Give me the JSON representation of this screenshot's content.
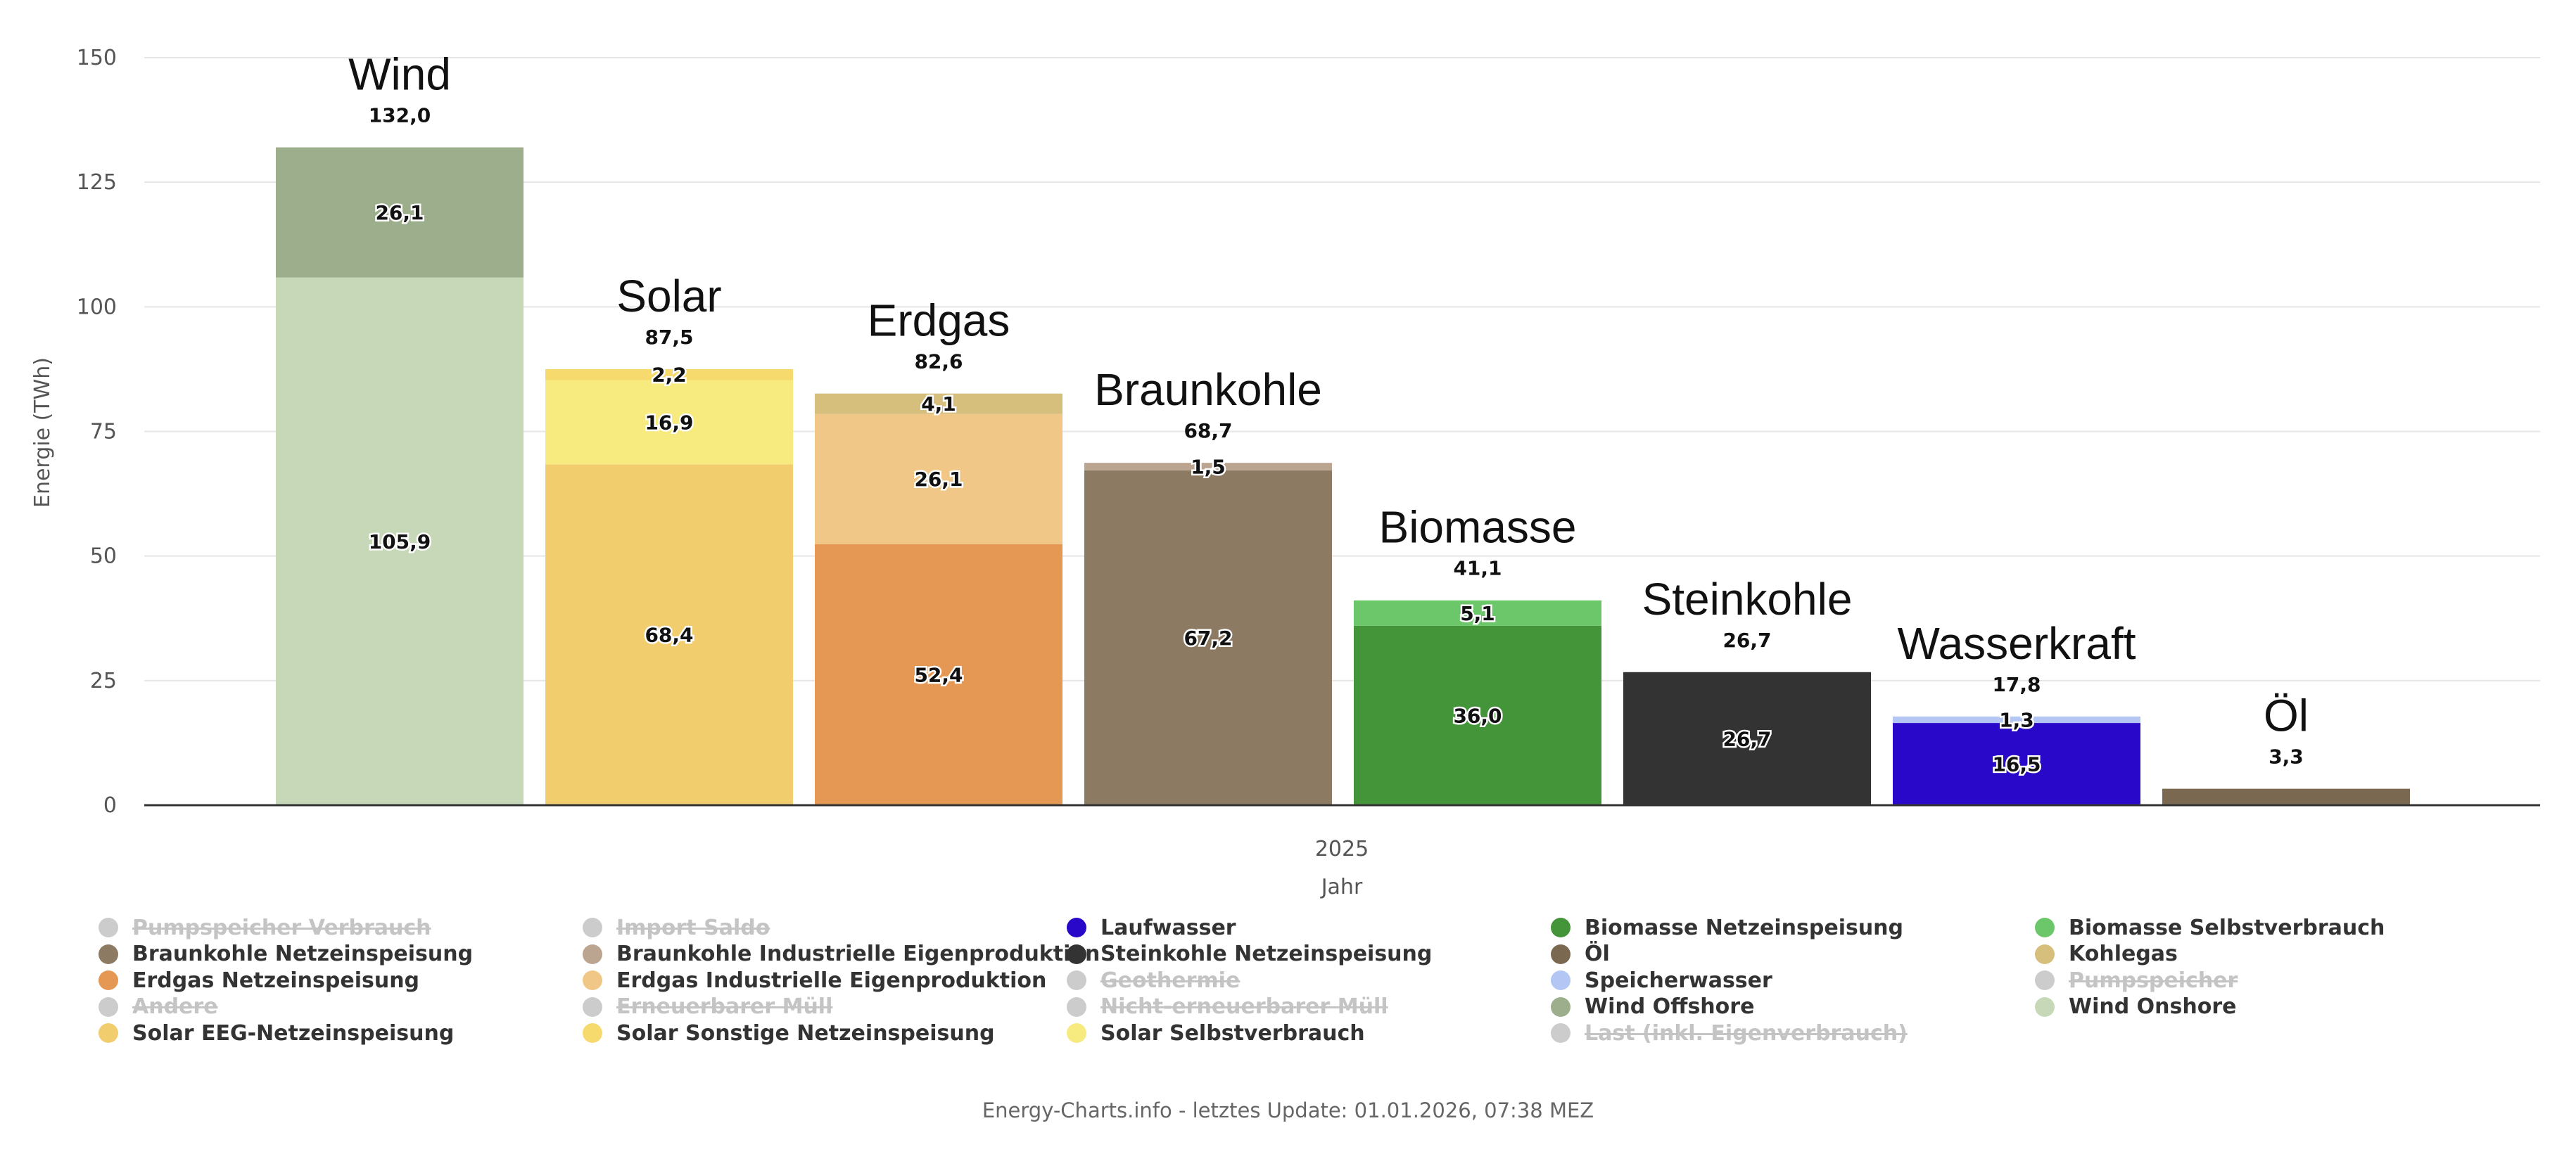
{
  "chart_data": {
    "type": "bar",
    "stacked": true,
    "ylabel": "Energie (TWh)",
    "xlabel": "Jahr",
    "x_category": "2025",
    "ylim": [
      0,
      150
    ],
    "yticks": [
      "0",
      "25",
      "50",
      "75",
      "100",
      "125",
      "150"
    ],
    "grid": true,
    "bars": [
      {
        "name": "Wind",
        "total_label": "132,0",
        "segments": [
          {
            "series": "Wind Onshore",
            "value": 105.9,
            "label": "105,9",
            "color": "#c6d8b8"
          },
          {
            "series": "Wind Offshore",
            "value": 26.1,
            "label": "26,1",
            "color": "#9cae8c"
          }
        ]
      },
      {
        "name": "Solar",
        "total_label": "87,5",
        "segments": [
          {
            "series": "Solar EEG-Netzeinspeisung",
            "value": 68.4,
            "label": "68,4",
            "color": "#f1cd6e"
          },
          {
            "series": "Solar Selbstverbrauch",
            "value": 16.9,
            "label": "16,9",
            "color": "#f7ea7e"
          },
          {
            "series": "Solar Sonstige Netzeinspeisung",
            "value": 2.2,
            "label": "2,2",
            "color": "#f7da6e"
          }
        ]
      },
      {
        "name": "Erdgas",
        "total_label": "82,6",
        "segments": [
          {
            "series": "Erdgas Netzeinspeisung",
            "value": 52.4,
            "label": "52,4",
            "color": "#e59853"
          },
          {
            "series": "Erdgas Industrielle Eigenproduktion",
            "value": 26.1,
            "label": "26,1",
            "color": "#f0c786"
          },
          {
            "series": "Kohlegas",
            "value": 4.1,
            "label": "4,1",
            "color": "#d6bf7c"
          }
        ]
      },
      {
        "name": "Braunkohle",
        "total_label": "68,7",
        "segments": [
          {
            "series": "Braunkohle Netzeinspeisung",
            "value": 67.2,
            "label": "67,2",
            "color": "#8c7a63"
          },
          {
            "series": "Braunkohle Industrielle Eigenproduktion",
            "value": 1.5,
            "label": "1,5",
            "color": "#bba591"
          }
        ]
      },
      {
        "name": "Biomasse",
        "total_label": "41,1",
        "segments": [
          {
            "series": "Biomasse Netzeinspeisung",
            "value": 36.0,
            "label": "36,0",
            "color": "#44943a"
          },
          {
            "series": "Biomasse Selbstverbrauch",
            "value": 5.1,
            "label": "5,1",
            "color": "#6cc76a"
          }
        ]
      },
      {
        "name": "Steinkohle",
        "total_label": "26,7",
        "segments": [
          {
            "series": "Steinkohle Netzeinspeisung",
            "value": 26.7,
            "label": "26,7",
            "color": "#333333"
          }
        ]
      },
      {
        "name": "Wasserkraft",
        "total_label": "17,8",
        "segments": [
          {
            "series": "Laufwasser",
            "value": 16.5,
            "label": "16,5",
            "color": "#2a08c9"
          },
          {
            "series": "Speicherwasser",
            "value": 1.3,
            "label": "1,3",
            "color": "#b3c6f4"
          }
        ]
      },
      {
        "name": "Öl",
        "total_label": "3,3",
        "segments": [
          {
            "series": "Öl",
            "value": 3.3,
            "label": "",
            "color": "#7a6850"
          }
        ]
      }
    ],
    "legend": [
      {
        "label": "Pumpspeicher Verbrauch",
        "color": "#c8c8c8",
        "enabled": false
      },
      {
        "label": "Import Saldo",
        "color": "#c8c8c8",
        "enabled": false
      },
      {
        "label": "Laufwasser",
        "color": "#2a08c9",
        "enabled": true
      },
      {
        "label": "Biomasse Netzeinspeisung",
        "color": "#44943a",
        "enabled": true
      },
      {
        "label": "Biomasse Selbstverbrauch",
        "color": "#6cc76a",
        "enabled": true
      },
      {
        "label": "Braunkohle Netzeinspeisung",
        "color": "#8c7a63",
        "enabled": true
      },
      {
        "label": "Braunkohle Industrielle Eigenproduktion",
        "color": "#bba591",
        "enabled": true
      },
      {
        "label": "Steinkohle Netzeinspeisung",
        "color": "#333333",
        "enabled": true
      },
      {
        "label": "Öl",
        "color": "#7a6850",
        "enabled": true
      },
      {
        "label": "Kohlegas",
        "color": "#d6bf7c",
        "enabled": true
      },
      {
        "label": "Erdgas Netzeinspeisung",
        "color": "#e59853",
        "enabled": true
      },
      {
        "label": "Erdgas Industrielle Eigenproduktion",
        "color": "#f0c786",
        "enabled": true
      },
      {
        "label": "Geothermie",
        "color": "#c8c8c8",
        "enabled": false
      },
      {
        "label": "Speicherwasser",
        "color": "#b3c6f4",
        "enabled": true
      },
      {
        "label": "Pumpspeicher",
        "color": "#c8c8c8",
        "enabled": false
      },
      {
        "label": "Andere",
        "color": "#c8c8c8",
        "enabled": false
      },
      {
        "label": "Erneuerbarer Müll",
        "color": "#c8c8c8",
        "enabled": false
      },
      {
        "label": "Nicht-erneuerbarer Müll",
        "color": "#c8c8c8",
        "enabled": false
      },
      {
        "label": "Wind Offshore",
        "color": "#9cae8c",
        "enabled": true
      },
      {
        "label": "Wind Onshore",
        "color": "#c6d8b8",
        "enabled": true
      },
      {
        "label": "Solar EEG-Netzeinspeisung",
        "color": "#f1cd6e",
        "enabled": true
      },
      {
        "label": "Solar Sonstige Netzeinspeisung",
        "color": "#f7da6e",
        "enabled": true
      },
      {
        "label": "Solar Selbstverbrauch",
        "color": "#f7ea7e",
        "enabled": true
      },
      {
        "label": "Last (inkl. Eigenverbrauch)",
        "color": "#c8c8c8",
        "enabled": false
      }
    ]
  },
  "credits": "Energy-Charts.info - letztes Update: 01.01.2026, 07:38 MEZ"
}
